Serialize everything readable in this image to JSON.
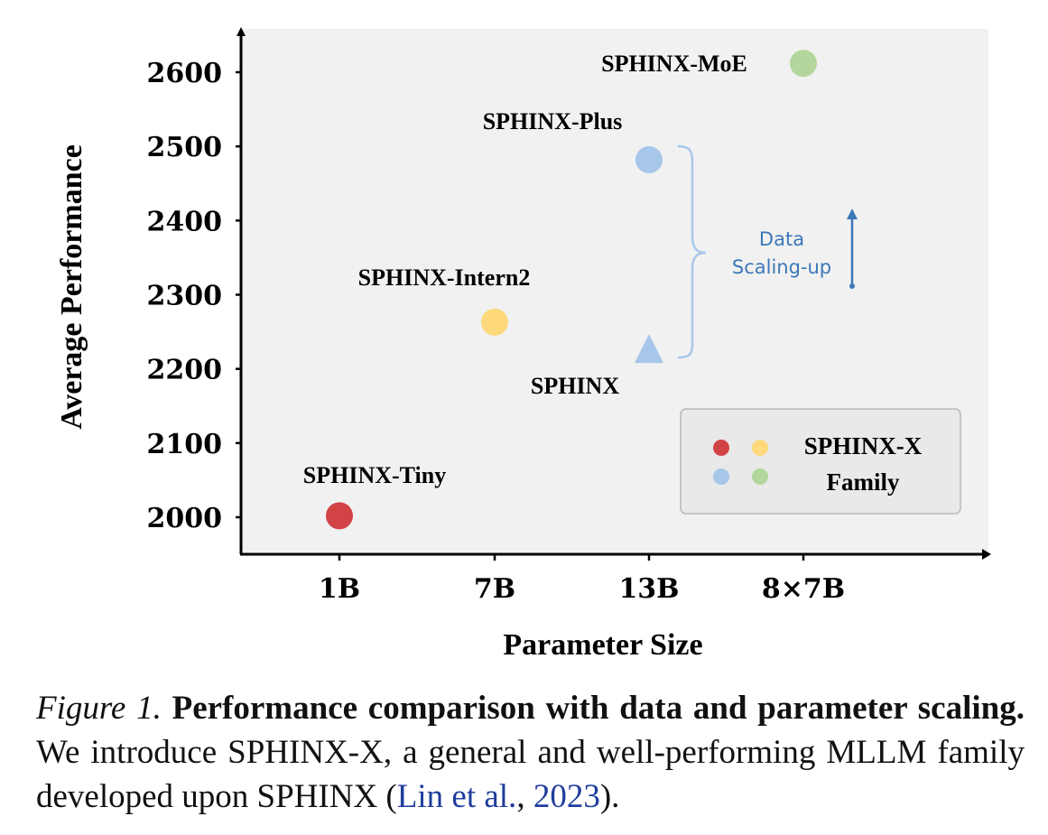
{
  "chart_data": {
    "type": "scatter",
    "xlabel": "Parameter Size",
    "ylabel": "Average Performance",
    "categories": [
      "1B",
      "7B",
      "13B",
      "8×7B"
    ],
    "yticks": [
      2000,
      2100,
      2200,
      2300,
      2400,
      2500,
      2600
    ],
    "ylim": [
      1950,
      2660
    ],
    "grid": false,
    "points": [
      {
        "label": "SPHINX-Tiny",
        "x": "1B",
        "y": 2002,
        "color": "#d24346",
        "marker": "circle"
      },
      {
        "label": "SPHINX-Intern2",
        "x": "7B",
        "y": 2263,
        "color": "#fdd97b",
        "marker": "circle"
      },
      {
        "label": "SPHINX",
        "x": "13B",
        "y": 2225,
        "color": "#a6c7ea",
        "marker": "triangle"
      },
      {
        "label": "SPHINX-Plus",
        "x": "13B",
        "y": 2482,
        "color": "#a6c7ea",
        "marker": "circle"
      },
      {
        "label": "SPHINX-MoE",
        "x": "8×7B",
        "y": 2612,
        "color": "#b2d69c",
        "marker": "circle"
      }
    ],
    "annotation": {
      "line1": "Data",
      "line2": "Scaling-up",
      "color": "#3b78b8"
    },
    "legend": {
      "placement": "bottom-right",
      "line1": "SPHINX-X",
      "line2": "Family",
      "dots": [
        "#d24346",
        "#fdd97b",
        "#a6c7ea",
        "#b2d69c"
      ]
    }
  },
  "caption": {
    "figure": "Figure 1.",
    "bold": "Performance comparison with data and parameter scaling.",
    "text": " We introduce SPHINX-X, a general and well-performing MLLM family developed upon SPHINX (",
    "cite_author": "Lin et al.",
    "sep": ", ",
    "cite_year": "2023",
    "end": ")."
  }
}
